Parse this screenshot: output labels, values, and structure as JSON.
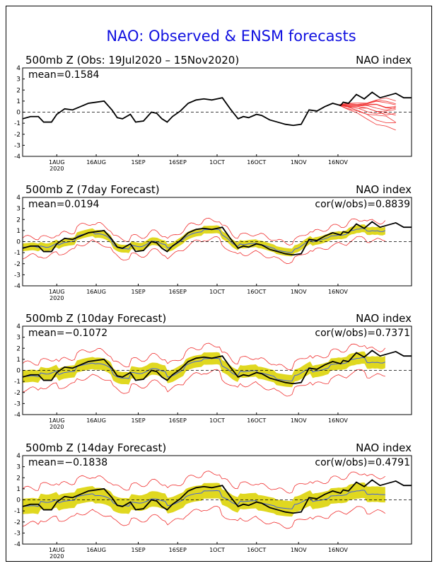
{
  "page_title": "NAO: Observed & ENSM forecasts",
  "colors": {
    "title": "#1010e0",
    "observed": "#000000",
    "forecast_line": "#f03030",
    "ensemble_band": "#e0d820",
    "ensemble_mean": "#4060e0",
    "zero_line": "#000000"
  },
  "chart_data": [
    {
      "type": "line",
      "panel_id": "observed",
      "title": "500mb  Z (Obs: 19Jul2020 – 15Nov2020)",
      "right_label": "NAO index",
      "mean_label": "mean=0.1584",
      "cor_label": "",
      "ylim": [
        -4,
        4
      ],
      "yticks": [
        "4",
        "3",
        "2",
        "1",
        "0",
        "-1",
        "-2",
        "-3",
        "-4"
      ],
      "xlim_days": [
        0,
        148
      ],
      "xticks": [
        "1AUG",
        "16AUG",
        "1SEP",
        "16SEP",
        "1OCT",
        "16OCT",
        "1NOV",
        "16NOV"
      ],
      "xtick_year": "2020",
      "series": [
        {
          "role": "observed",
          "x": [
            0,
            3,
            6,
            8,
            11,
            13,
            16,
            19,
            22,
            25,
            28,
            31,
            34,
            36,
            38,
            41,
            43,
            46,
            49,
            51,
            53,
            55,
            57,
            60,
            63,
            66,
            69,
            72,
            74,
            76,
            79,
            82,
            84,
            86,
            89,
            91,
            94,
            97,
            100,
            103,
            106,
            109,
            112,
            115,
            118,
            121,
            122,
            124,
            127,
            130,
            133,
            136,
            139,
            142,
            145,
            148
          ],
          "y": [
            -0.6,
            -0.4,
            -0.4,
            -0.9,
            -0.9,
            -0.2,
            0.3,
            0.2,
            0.5,
            0.8,
            0.9,
            1.0,
            0.2,
            -0.5,
            -0.6,
            -0.2,
            -0.9,
            -0.8,
            0.0,
            -0.1,
            -0.6,
            -0.9,
            -0.4,
            0.1,
            0.8,
            1.1,
            1.2,
            1.1,
            1.2,
            1.3,
            0.3,
            -0.6,
            -0.4,
            -0.5,
            -0.2,
            -0.3,
            -0.7,
            -0.9,
            -1.1,
            -1.2,
            -1.1,
            0.2,
            0.1,
            0.5,
            0.8,
            0.6,
            0.9,
            0.8,
            1.6,
            1.2,
            1.8,
            1.3,
            1.5,
            1.7,
            1.3,
            1.3
          ]
        }
      ],
      "forecast_spaghetti": {
        "start_x": 120,
        "end_x": 142,
        "member_ends": [
          1.2,
          0.9,
          0.6,
          0.3,
          0.0,
          -0.4,
          -0.8,
          1.0,
          0.5,
          -0.2,
          -1.2,
          -1.8
        ]
      }
    },
    {
      "type": "line",
      "panel_id": "forecast-7day",
      "title": "500mb  Z (7day Forecast)",
      "right_label": "NAO index",
      "mean_label": "mean=0.0194",
      "cor_label": "cor(w/obs)=0.8839",
      "ylim": [
        -4,
        4
      ],
      "yticks": [
        "4",
        "3",
        "2",
        "1",
        "0",
        "-1",
        "-2",
        "-3",
        "-4"
      ],
      "xlim_days": [
        0,
        148
      ],
      "xticks": [
        "1AUG",
        "16AUG",
        "1SEP",
        "16SEP",
        "1OCT",
        "16OCT",
        "1NOV",
        "16NOV"
      ],
      "xtick_year": "2020",
      "band_halfwidth": 0.35,
      "outer_halfwidth": 0.85,
      "lead_days": 7,
      "mean_offsets": [
        -0.1,
        0.1,
        -0.2,
        0.2,
        0.0,
        -0.3,
        0.1,
        0.2,
        -0.1,
        0.0,
        0.2,
        -0.2,
        0.1,
        0.0,
        -0.1,
        0.2,
        -0.1,
        0.0,
        0.1,
        -0.2
      ]
    },
    {
      "type": "line",
      "panel_id": "forecast-10day",
      "title": "500mb  Z (10day Forecast)",
      "right_label": "NAO index",
      "mean_label": "mean=−0.1072",
      "cor_label": "cor(w/obs)=0.7371",
      "ylim": [
        -4,
        4
      ],
      "yticks": [
        "4",
        "3",
        "2",
        "1",
        "0",
        "-1",
        "-2",
        "-3",
        "-4"
      ],
      "xlim_days": [
        0,
        148
      ],
      "xticks": [
        "1AUG",
        "16AUG",
        "1SEP",
        "16SEP",
        "1OCT",
        "16OCT",
        "1NOV",
        "16NOV"
      ],
      "xtick_year": "2020",
      "band_halfwidth": 0.55,
      "outer_halfwidth": 1.2,
      "lead_days": 10,
      "mean_offsets": [
        -0.2,
        0.2,
        -0.3,
        0.1,
        0.0,
        -0.4,
        0.2,
        0.3,
        -0.2,
        0.1,
        0.3,
        -0.3,
        0.2,
        0.0,
        -0.2,
        0.3,
        -0.2,
        0.1,
        0.2,
        -0.3
      ]
    },
    {
      "type": "line",
      "panel_id": "forecast-14day",
      "title": "500mb  Z (14day Forecast)",
      "right_label": "NAO index",
      "mean_label": "mean=−0.1838",
      "cor_label": "cor(w/obs)=0.4791",
      "ylim": [
        -4,
        4
      ],
      "yticks": [
        "4",
        "3",
        "2",
        "1",
        "0",
        "-1",
        "-2",
        "-3",
        "-4"
      ],
      "xlim_days": [
        0,
        148
      ],
      "xticks": [
        "1AUG",
        "16AUG",
        "1SEP",
        "16SEP",
        "1OCT",
        "16OCT",
        "1NOV",
        "16NOV"
      ],
      "xtick_year": "2020",
      "band_halfwidth": 0.7,
      "outer_halfwidth": 1.6,
      "lead_days": 14,
      "mean_offsets": [
        -0.3,
        0.2,
        -0.2,
        0.1,
        -0.1,
        -0.3,
        0.1,
        0.2,
        -0.2,
        0.0,
        0.2,
        -0.3,
        0.1,
        -0.1,
        -0.2,
        0.2,
        -0.2,
        0.0,
        0.1,
        -0.3
      ]
    }
  ]
}
